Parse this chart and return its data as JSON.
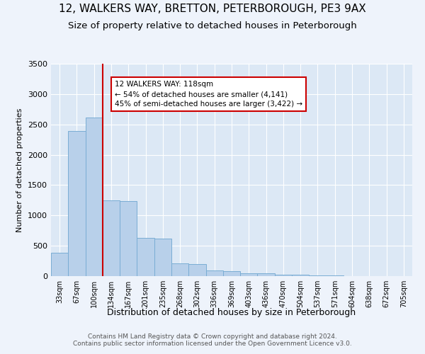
{
  "title1": "12, WALKERS WAY, BRETTON, PETERBOROUGH, PE3 9AX",
  "title2": "Size of property relative to detached houses in Peterborough",
  "xlabel": "Distribution of detached houses by size in Peterborough",
  "ylabel": "Number of detached properties",
  "categories": [
    "33sqm",
    "67sqm",
    "100sqm",
    "134sqm",
    "167sqm",
    "201sqm",
    "235sqm",
    "268sqm",
    "302sqm",
    "336sqm",
    "369sqm",
    "403sqm",
    "436sqm",
    "470sqm",
    "504sqm",
    "537sqm",
    "571sqm",
    "604sqm",
    "638sqm",
    "672sqm",
    "705sqm"
  ],
  "values": [
    390,
    2390,
    2610,
    1250,
    1240,
    630,
    620,
    210,
    200,
    90,
    85,
    50,
    45,
    20,
    18,
    8,
    6,
    3,
    2,
    1,
    1
  ],
  "bar_color": "#b8d0ea",
  "bar_edge_color": "#7aadd4",
  "vline_x": 2.5,
  "vline_color": "#cc0000",
  "annotation_text": "12 WALKERS WAY: 118sqm\n← 54% of detached houses are smaller (4,141)\n45% of semi-detached houses are larger (3,422) →",
  "annotation_box_color": "#ffffff",
  "annotation_box_edge": "#cc0000",
  "footer": "Contains HM Land Registry data © Crown copyright and database right 2024.\nContains public sector information licensed under the Open Government Licence v3.0.",
  "background_color": "#eef3fb",
  "plot_background": "#dce8f5",
  "ylim": [
    0,
    3500
  ],
  "title1_fontsize": 11,
  "title2_fontsize": 9.5,
  "ylabel_fontsize": 8,
  "xlabel_fontsize": 9,
  "tick_fontsize": 7,
  "footer_fontsize": 6.5
}
